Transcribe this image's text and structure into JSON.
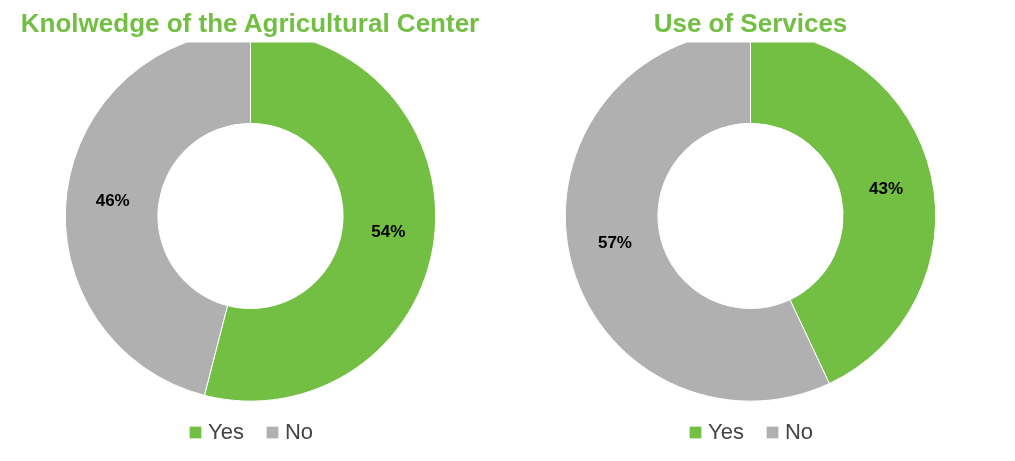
{
  "chart_data": [
    {
      "type": "donut",
      "title": "Knolwedge of the Agricultural Center",
      "categories": [
        "Yes",
        "No"
      ],
      "values": [
        54,
        46
      ],
      "colors": [
        "#72bf44",
        "#b0b0b0"
      ],
      "value_labels": [
        "54%",
        "46%"
      ],
      "legend": "bottom"
    },
    {
      "type": "donut",
      "title": "Use of Services",
      "categories": [
        "Yes",
        "No"
      ],
      "values": [
        43,
        57
      ],
      "colors": [
        "#72bf44",
        "#b0b0b0"
      ],
      "value_labels": [
        "43%",
        "57%"
      ],
      "legend": "bottom"
    }
  ]
}
